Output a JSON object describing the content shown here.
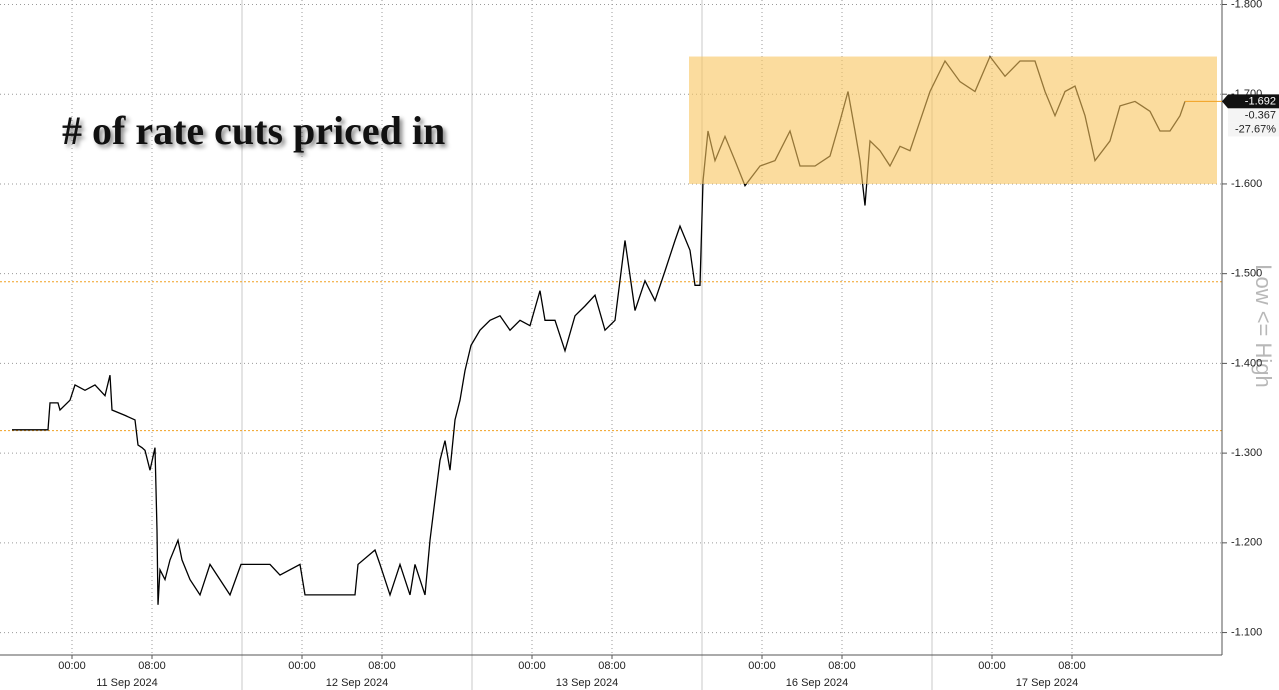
{
  "chart_data": {
    "type": "line",
    "title": "# of rate cuts priced in",
    "axis_label": "Low <= High",
    "color": "#000000",
    "ylim": [
      -1.075,
      -1.805
    ],
    "yticks": [
      {
        "value": -1.8,
        "label": "-1.800"
      },
      {
        "value": -1.7,
        "label": "-1.700"
      },
      {
        "value": -1.6,
        "label": "-1.600"
      },
      {
        "value": -1.5,
        "label": "-1.500"
      },
      {
        "value": -1.4,
        "label": "-1.400"
      },
      {
        "value": -1.3,
        "label": "-1.300"
      },
      {
        "value": -1.2,
        "label": "-1.200"
      },
      {
        "value": -1.1,
        "label": "-1.100"
      }
    ],
    "xlim": [
      "2024-09-10T18:00",
      "2024-09-18T00:00"
    ],
    "xticks": [
      {
        "value": "2024-09-11T00:00",
        "label": "00:00"
      },
      {
        "value": "2024-09-11T08:00",
        "label": "08:00"
      },
      {
        "value": "2024-09-12T00:00",
        "label": "00:00"
      },
      {
        "value": "2024-09-12T08:00",
        "label": "08:00"
      },
      {
        "value": "2024-09-13T00:00",
        "label": "00:00"
      },
      {
        "value": "2024-09-13T08:00",
        "label": "08:00"
      },
      {
        "value": "2024-09-16T00:00",
        "label": "00:00"
      },
      {
        "value": "2024-09-16T08:00",
        "label": "08:00"
      },
      {
        "value": "2024-09-17T00:00",
        "label": "00:00"
      },
      {
        "value": "2024-09-17T08:00",
        "label": "08:00"
      }
    ],
    "sessions": [
      {
        "value": "2024-09-11",
        "label": "11 Sep 2024"
      },
      {
        "value": "2024-09-12",
        "label": "12 Sep 2024"
      },
      {
        "value": "2024-09-13",
        "label": "13 Sep 2024"
      },
      {
        "value": "2024-09-16",
        "label": "16 Sep 2024"
      },
      {
        "value": "2024-09-17",
        "label": "17 Sep 2024"
      }
    ],
    "grid": true,
    "reference_lines": [
      -1.325,
      -1.491
    ],
    "reference_color": "#f0a020",
    "highlight": {
      "x": [
        "2024-09-13T15:42",
        "2024-09-17T23:30"
      ],
      "y": [
        -1.6,
        -1.742
      ],
      "color": "#f8c45e"
    },
    "last_labels": [
      "-1.692",
      "-0.367",
      "-27.67%"
    ],
    "x": [
      "2024-09-10T18:00",
      "2024-09-10T21:36",
      "2024-09-10T21:48",
      "2024-09-10T22:36",
      "2024-09-10T22:48",
      "2024-09-10T23:48",
      "2024-09-11T00:18",
      "2024-09-11T01:18",
      "2024-09-11T02:18",
      "2024-09-11T03:18",
      "2024-09-11T03:48",
      "2024-09-11T04:00",
      "2024-09-11T05:18",
      "2024-09-11T06:18",
      "2024-09-11T06:36",
      "2024-09-11T07:00",
      "2024-09-11T07:18",
      "2024-09-11T07:48",
      "2024-09-11T08:18",
      "2024-09-11T08:30",
      "2024-09-11T08:36",
      "2024-09-11T08:48",
      "2024-09-11T09:18",
      "2024-09-11T09:48",
      "2024-09-11T10:36",
      "2024-09-11T11:00",
      "2024-09-11T11:48",
      "2024-09-11T12:48",
      "2024-09-11T13:48",
      "2024-09-11T15:48",
      "2024-09-11T16:54",
      "2024-09-11T18:48",
      "2024-09-11T20:48",
      "2024-09-11T21:48",
      "2024-09-11T23:48",
      "2024-09-12T00:18",
      "2024-09-12T05:18",
      "2024-09-12T05:36",
      "2024-09-12T07:18",
      "2024-09-12T07:48",
      "2024-09-12T08:48",
      "2024-09-12T09:48",
      "2024-09-12T10:48",
      "2024-09-12T11:18",
      "2024-09-12T12:18",
      "2024-09-12T12:48",
      "2024-09-12T13:18",
      "2024-09-12T13:48",
      "2024-09-12T14:18",
      "2024-09-12T14:48",
      "2024-09-12T15:18",
      "2024-09-12T15:48",
      "2024-09-12T16:18",
      "2024-09-12T16:54",
      "2024-09-12T18:48",
      "2024-09-12T19:48",
      "2024-09-12T20:48",
      "2024-09-12T21:48",
      "2024-09-12T22:48",
      "2024-09-12T23:48",
      "2024-09-13T00:48",
      "2024-09-13T01:18",
      "2024-09-13T02:18",
      "2024-09-13T03:18",
      "2024-09-13T04:18",
      "2024-09-13T05:18",
      "2024-09-13T06:18",
      "2024-09-13T07:18",
      "2024-09-13T08:18",
      "2024-09-13T09:18",
      "2024-09-13T10:18",
      "2024-09-13T11:18",
      "2024-09-13T12:18",
      "2024-09-13T13:18",
      "2024-09-13T14:18",
      "2024-09-13T14:48",
      "2024-09-13T15:48",
      "2024-09-13T16:18",
      "2024-09-13T16:48",
      "2024-09-15T18:06",
      "2024-09-15T18:36",
      "2024-09-15T19:18",
      "2024-09-15T20:18",
      "2024-09-15T21:18",
      "2024-09-15T22:18",
      "2024-09-15T23:48",
      "2024-09-16T01:18",
      "2024-09-16T02:48",
      "2024-09-16T03:48",
      "2024-09-16T05:18",
      "2024-09-16T06:48",
      "2024-09-16T07:48",
      "2024-09-16T08:36",
      "2024-09-16T09:18",
      "2024-09-16T09:48",
      "2024-09-16T10:18",
      "2024-09-16T10:48",
      "2024-09-16T11:48",
      "2024-09-16T12:48",
      "2024-09-16T13:48",
      "2024-09-16T14:48",
      "2024-09-16T15:48",
      "2024-09-16T16:48",
      "2024-09-16T19:18",
      "2024-09-16T20:48",
      "2024-09-16T22:18",
      "2024-09-16T23:48",
      "2024-09-17T01:18",
      "2024-09-17T02:48",
      "2024-09-17T04:18",
      "2024-09-17T05:18",
      "2024-09-17T06:18",
      "2024-09-17T07:18",
      "2024-09-17T08:18",
      "2024-09-17T09:18",
      "2024-09-17T10:18",
      "2024-09-17T11:48",
      "2024-09-17T12:48",
      "2024-09-17T14:18",
      "2024-09-17T15:48",
      "2024-09-17T16:48",
      "2024-09-17T18:48",
      "2024-09-17T19:48",
      "2024-09-17T20:18"
    ],
    "values": [
      -1.326,
      -1.326,
      -1.356,
      -1.356,
      -1.348,
      -1.359,
      -1.376,
      -1.37,
      -1.376,
      -1.364,
      -1.387,
      -1.348,
      -1.342,
      -1.337,
      -1.309,
      -1.306,
      -1.303,
      -1.281,
      -1.306,
      -1.214,
      -1.131,
      -1.17,
      -1.159,
      -1.181,
      -1.203,
      -1.181,
      -1.159,
      -1.142,
      -1.176,
      -1.142,
      -1.176,
      -1.176,
      -1.176,
      -1.164,
      -1.176,
      -1.142,
      -1.142,
      -1.176,
      -1.192,
      -1.176,
      -1.142,
      -1.176,
      -1.142,
      -1.176,
      -1.142,
      -1.203,
      -1.248,
      -1.292,
      -1.314,
      -1.281,
      -1.337,
      -1.359,
      -1.392,
      -1.42,
      -1.437,
      -1.448,
      -1.453,
      -1.437,
      -1.448,
      -1.442,
      -1.481,
      -1.448,
      -1.448,
      -1.414,
      -1.453,
      -1.464,
      -1.476,
      -1.437,
      -1.448,
      -1.537,
      -1.459,
      -1.492,
      -1.47,
      -1.503,
      -1.537,
      -1.553,
      -1.526,
      -1.487,
      -1.487,
      -1.603,
      -1.659,
      -1.626,
      -1.653,
      -1.626,
      -1.598,
      -1.62,
      -1.626,
      -1.659,
      -1.62,
      -1.62,
      -1.631,
      -1.67,
      -1.703,
      -1.659,
      -1.626,
      -1.576,
      -1.648,
      -1.637,
      -1.62,
      -1.642,
      -1.637,
      -1.67,
      -1.703,
      -1.737,
      -1.714,
      -1.703,
      -1.742,
      -1.72,
      -1.737,
      -1.737,
      -1.703,
      -1.676,
      -1.703,
      -1.709,
      -1.676,
      -1.626,
      -1.648,
      -1.687,
      -1.692,
      -1.681,
      -1.659,
      -1.659,
      -1.676,
      -1.692
    ]
  }
}
